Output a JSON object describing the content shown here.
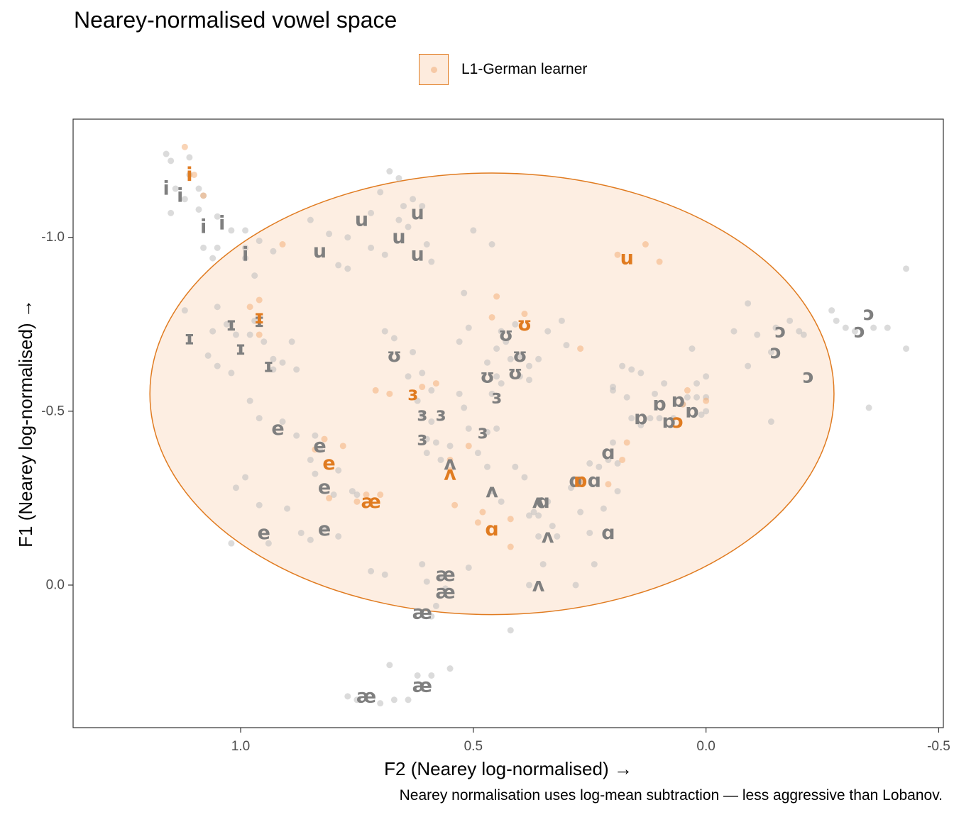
{
  "chart_data": {
    "type": "scatter",
    "title": "Nearey-normalised vowel space",
    "xlabel": "F2 (Nearey log-normalised) →",
    "ylabel": "F1 (Nearey log-normalised) →",
    "caption": "Nearey normalisation uses log-mean subtraction — less aggressive than Lobanov.",
    "xlim": [
      1.36,
      -0.51
    ],
    "ylim": [
      0.41,
      -1.34
    ],
    "x_reversed": true,
    "y_reversed": true,
    "x_ticks": [
      1.0,
      0.5,
      0.0,
      -0.5
    ],
    "x_tick_labels": [
      "1.0",
      "0.5",
      "0.0",
      "-0.5"
    ],
    "y_ticks": [
      -1.0,
      -0.5,
      0.0
    ],
    "y_tick_labels": [
      "-1.0",
      "-0.5",
      "0.0"
    ],
    "legend": [
      {
        "name": "L1-German learner",
        "color": "#e07b20"
      }
    ],
    "legend_position": "top",
    "colors": {
      "learner": "#e07b20",
      "reference": "#7f7f7f",
      "ellipse_fill": "#fdebdd",
      "ellipse_stroke": "#e07b20"
    },
    "ellipse": {
      "cx": 0.46,
      "cy": -0.55,
      "rx": 0.735,
      "ry": 0.635,
      "series": "L1-German learner"
    },
    "reference_points": [
      [
        1.16,
        -1.24
      ],
      [
        1.15,
        -1.22
      ],
      [
        1.11,
        -1.23
      ],
      [
        1.11,
        -1.18
      ],
      [
        1.09,
        -1.14
      ],
      [
        1.08,
        -1.12
      ],
      [
        1.12,
        -1.11
      ],
      [
        1.09,
        -1.08
      ],
      [
        1.15,
        -1.07
      ],
      [
        1.14,
        -1.14
      ],
      [
        1.05,
        -1.06
      ],
      [
        1.02,
        -1.02
      ],
      [
        0.99,
        -1.02
      ],
      [
        1.05,
        -0.97
      ],
      [
        1.08,
        -0.97
      ],
      [
        1.06,
        -0.94
      ],
      [
        0.99,
        -0.97
      ],
      [
        0.96,
        -0.99
      ],
      [
        0.99,
        -0.94
      ],
      [
        0.97,
        -0.89
      ],
      [
        0.93,
        -0.96
      ],
      [
        0.85,
        -1.05
      ],
      [
        0.81,
        -1.01
      ],
      [
        0.79,
        -0.92
      ],
      [
        0.77,
        -0.91
      ],
      [
        0.7,
        -1.13
      ],
      [
        0.72,
        -1.07
      ],
      [
        0.77,
        -1.0
      ],
      [
        0.72,
        -0.97
      ],
      [
        0.69,
        -0.95
      ],
      [
        0.63,
        -1.11
      ],
      [
        0.61,
        -1.09
      ],
      [
        0.66,
        -1.05
      ],
      [
        0.64,
        -1.03
      ],
      [
        0.6,
        -0.98
      ],
      [
        0.59,
        -0.93
      ],
      [
        0.5,
        -1.02
      ],
      [
        0.46,
        -0.98
      ],
      [
        0.52,
        -0.84
      ],
      [
        0.68,
        -1.19
      ],
      [
        0.66,
        -1.17
      ],
      [
        0.65,
        -1.09
      ],
      [
        1.12,
        -0.79
      ],
      [
        1.05,
        -0.8
      ],
      [
        1.06,
        -0.73
      ],
      [
        1.03,
        -0.75
      ],
      [
        1.01,
        -0.72
      ],
      [
        1.07,
        -0.66
      ],
      [
        1.05,
        -0.63
      ],
      [
        1.02,
        -0.61
      ],
      [
        0.98,
        -0.72
      ],
      [
        0.97,
        -0.76
      ],
      [
        0.95,
        -0.7
      ],
      [
        0.93,
        -0.65
      ],
      [
        0.89,
        -0.7
      ],
      [
        0.93,
        -0.62
      ],
      [
        0.91,
        -0.64
      ],
      [
        0.88,
        -0.62
      ],
      [
        0.98,
        -0.53
      ],
      [
        0.96,
        -0.48
      ],
      [
        0.91,
        -0.47
      ],
      [
        0.88,
        -0.43
      ],
      [
        0.84,
        -0.43
      ],
      [
        0.83,
        -0.39
      ],
      [
        0.85,
        -0.36
      ],
      [
        0.84,
        -0.32
      ],
      [
        0.79,
        -0.33
      ],
      [
        0.8,
        -0.26
      ],
      [
        0.75,
        -0.26
      ],
      [
        0.9,
        -0.22
      ],
      [
        0.87,
        -0.15
      ],
      [
        0.85,
        -0.13
      ],
      [
        0.82,
        -0.16
      ],
      [
        0.79,
        -0.14
      ],
      [
        0.76,
        -0.27
      ],
      [
        0.99,
        -0.31
      ],
      [
        1.01,
        -0.28
      ],
      [
        0.96,
        -0.23
      ],
      [
        0.94,
        -0.12
      ],
      [
        1.02,
        -0.12
      ],
      [
        0.69,
        -0.73
      ],
      [
        0.67,
        -0.71
      ],
      [
        0.63,
        -0.67
      ],
      [
        0.64,
        -0.6
      ],
      [
        0.61,
        -0.61
      ],
      [
        0.59,
        -0.56
      ],
      [
        0.62,
        -0.53
      ],
      [
        0.61,
        -0.49
      ],
      [
        0.59,
        -0.47
      ],
      [
        0.6,
        -0.42
      ],
      [
        0.58,
        -0.41
      ],
      [
        0.55,
        -0.4
      ],
      [
        0.6,
        -0.38
      ],
      [
        0.57,
        -0.36
      ],
      [
        0.53,
        -0.55
      ],
      [
        0.52,
        -0.51
      ],
      [
        0.51,
        -0.45
      ],
      [
        0.47,
        -0.44
      ],
      [
        0.45,
        -0.45
      ],
      [
        0.49,
        -0.38
      ],
      [
        0.46,
        -0.55
      ],
      [
        0.44,
        -0.58
      ],
      [
        0.45,
        -0.6
      ],
      [
        0.47,
        -0.64
      ],
      [
        0.45,
        -0.68
      ],
      [
        0.43,
        -0.7
      ],
      [
        0.42,
        -0.65
      ],
      [
        0.44,
        -0.73
      ],
      [
        0.41,
        -0.75
      ],
      [
        0.4,
        -0.66
      ],
      [
        0.38,
        -0.63
      ],
      [
        0.36,
        -0.65
      ],
      [
        0.38,
        -0.59
      ],
      [
        0.4,
        -0.6
      ],
      [
        0.3,
        -0.69
      ],
      [
        0.31,
        -0.76
      ],
      [
        0.34,
        -0.73
      ],
      [
        0.53,
        -0.7
      ],
      [
        0.51,
        -0.74
      ],
      [
        0.47,
        -0.34
      ],
      [
        0.46,
        -0.27
      ],
      [
        0.44,
        -0.24
      ],
      [
        0.41,
        -0.34
      ],
      [
        0.39,
        -0.31
      ],
      [
        0.38,
        -0.2
      ],
      [
        0.37,
        -0.21
      ],
      [
        0.36,
        -0.2
      ],
      [
        0.34,
        -0.24
      ],
      [
        0.33,
        -0.17
      ],
      [
        0.36,
        -0.14
      ],
      [
        0.35,
        -0.06
      ],
      [
        0.38,
        -0.0
      ],
      [
        0.32,
        -0.14
      ],
      [
        0.28,
        -0.0
      ],
      [
        0.27,
        -0.21
      ],
      [
        0.25,
        -0.15
      ],
      [
        0.24,
        -0.06
      ],
      [
        0.22,
        -0.22
      ],
      [
        0.19,
        -0.27
      ],
      [
        0.23,
        -0.34
      ],
      [
        0.21,
        -0.36
      ],
      [
        0.25,
        -0.35
      ],
      [
        0.27,
        -0.3
      ],
      [
        0.29,
        -0.28
      ],
      [
        0.2,
        -0.41
      ],
      [
        0.19,
        -0.35
      ],
      [
        0.2,
        -0.57
      ],
      [
        0.17,
        -0.54
      ],
      [
        0.16,
        -0.48
      ],
      [
        0.14,
        -0.46
      ],
      [
        0.12,
        -0.48
      ],
      [
        0.1,
        -0.48
      ],
      [
        0.07,
        -0.48
      ],
      [
        0.05,
        -0.52
      ],
      [
        0.04,
        -0.54
      ],
      [
        0.02,
        -0.54
      ],
      [
        0.01,
        -0.49
      ],
      [
        0.0,
        -0.5
      ],
      [
        -0.0,
        -0.54
      ],
      [
        0.02,
        -0.58
      ],
      [
        -0.0,
        -0.6
      ],
      [
        0.03,
        -0.68
      ],
      [
        0.09,
        -0.58
      ],
      [
        0.11,
        -0.55
      ],
      [
        0.14,
        -0.61
      ],
      [
        0.18,
        -0.63
      ],
      [
        0.2,
        -0.56
      ],
      [
        0.16,
        -0.62
      ],
      [
        0.72,
        -0.04
      ],
      [
        0.69,
        -0.03
      ],
      [
        0.61,
        -0.06
      ],
      [
        0.6,
        -0.01
      ],
      [
        0.57,
        -0.02
      ],
      [
        0.56,
        0.01
      ],
      [
        0.58,
        0.06
      ],
      [
        0.59,
        0.09
      ],
      [
        0.51,
        -0.05
      ],
      [
        0.42,
        0.13
      ],
      [
        0.75,
        0.33
      ],
      [
        0.77,
        0.32
      ],
      [
        0.7,
        0.34
      ],
      [
        0.67,
        0.33
      ],
      [
        0.64,
        0.33
      ],
      [
        0.59,
        0.26
      ],
      [
        0.62,
        0.26
      ],
      [
        0.68,
        0.23
      ],
      [
        0.55,
        0.24
      ],
      [
        -0.09,
        -0.81
      ],
      [
        -0.11,
        -0.72
      ],
      [
        -0.14,
        -0.67
      ],
      [
        -0.15,
        -0.74
      ],
      [
        -0.18,
        -0.76
      ],
      [
        -0.2,
        -0.73
      ],
      [
        -0.21,
        -0.72
      ],
      [
        -0.28,
        -0.76
      ],
      [
        -0.27,
        -0.79
      ],
      [
        -0.3,
        -0.74
      ],
      [
        -0.32,
        -0.73
      ],
      [
        -0.36,
        -0.74
      ],
      [
        -0.39,
        -0.74
      ],
      [
        -0.43,
        -0.91
      ],
      [
        -0.43,
        -0.68
      ],
      [
        -0.35,
        -0.51
      ],
      [
        -0.14,
        -0.47
      ],
      [
        -0.09,
        -0.63
      ],
      [
        -0.06,
        -0.73
      ]
    ],
    "learner_points": [
      [
        1.12,
        -1.26
      ],
      [
        1.1,
        -1.18
      ],
      [
        1.08,
        -1.12
      ],
      [
        0.91,
        -0.98
      ],
      [
        0.45,
        -0.83
      ],
      [
        0.39,
        -0.78
      ],
      [
        0.46,
        -0.77
      ],
      [
        0.27,
        -0.68
      ],
      [
        0.19,
        -0.95
      ],
      [
        0.13,
        -0.98
      ],
      [
        0.1,
        -0.93
      ],
      [
        0.96,
        -0.82
      ],
      [
        0.98,
        -0.8
      ],
      [
        0.96,
        -0.72
      ],
      [
        0.61,
        -0.57
      ],
      [
        0.68,
        -0.55
      ],
      [
        0.58,
        -0.58
      ],
      [
        0.82,
        -0.42
      ],
      [
        0.78,
        -0.4
      ],
      [
        0.84,
        -0.39
      ],
      [
        0.73,
        -0.26
      ],
      [
        0.7,
        -0.26
      ],
      [
        0.75,
        -0.24
      ],
      [
        0.55,
        -0.33
      ],
      [
        0.54,
        -0.23
      ],
      [
        0.48,
        -0.21
      ],
      [
        0.49,
        -0.18
      ],
      [
        0.42,
        -0.19
      ],
      [
        0.42,
        -0.11
      ],
      [
        0.17,
        -0.41
      ],
      [
        0.18,
        -0.36
      ],
      [
        0.27,
        -0.3
      ],
      [
        0.21,
        -0.29
      ],
      [
        0.05,
        -0.52
      ],
      [
        0.0,
        -0.53
      ],
      [
        0.04,
        -0.56
      ],
      [
        0.71,
        -0.56
      ],
      [
        0.81,
        -0.25
      ],
      [
        0.51,
        -0.4
      ],
      [
        0.55,
        -0.36
      ]
    ],
    "reference_labels": [
      {
        "x": 1.16,
        "y": -1.14,
        "label": "i"
      },
      {
        "x": 1.13,
        "y": -1.12,
        "label": "i"
      },
      {
        "x": 1.08,
        "y": -1.03,
        "label": "i"
      },
      {
        "x": 1.04,
        "y": -1.04,
        "label": "i"
      },
      {
        "x": 0.99,
        "y": -0.95,
        "label": "i"
      },
      {
        "x": 1.11,
        "y": -0.71,
        "label": "ɪ"
      },
      {
        "x": 1.02,
        "y": -0.75,
        "label": "ɪ"
      },
      {
        "x": 1.0,
        "y": -0.68,
        "label": "ɪ"
      },
      {
        "x": 0.96,
        "y": -0.76,
        "label": "ɪ"
      },
      {
        "x": 0.94,
        "y": -0.63,
        "label": "ɪ"
      },
      {
        "x": 0.92,
        "y": -0.45,
        "label": "e"
      },
      {
        "x": 0.83,
        "y": -0.4,
        "label": "e"
      },
      {
        "x": 0.82,
        "y": -0.28,
        "label": "e"
      },
      {
        "x": 0.82,
        "y": -0.16,
        "label": "e"
      },
      {
        "x": 0.95,
        "y": -0.15,
        "label": "e"
      },
      {
        "x": 0.74,
        "y": -1.05,
        "label": "u"
      },
      {
        "x": 0.66,
        "y": -1.0,
        "label": "u"
      },
      {
        "x": 0.62,
        "y": -0.95,
        "label": "u"
      },
      {
        "x": 0.83,
        "y": -0.96,
        "label": "u"
      },
      {
        "x": 0.62,
        "y": -1.07,
        "label": "u"
      },
      {
        "x": 0.67,
        "y": -0.66,
        "label": "ʊ"
      },
      {
        "x": 0.43,
        "y": -0.72,
        "label": "ʊ"
      },
      {
        "x": 0.4,
        "y": -0.66,
        "label": "ʊ"
      },
      {
        "x": 0.41,
        "y": -0.61,
        "label": "ʊ"
      },
      {
        "x": 0.47,
        "y": -0.6,
        "label": "ʊ"
      },
      {
        "x": 0.61,
        "y": -0.49,
        "label": "ɜ"
      },
      {
        "x": 0.57,
        "y": -0.49,
        "label": "ɜ"
      },
      {
        "x": 0.61,
        "y": -0.42,
        "label": "ɜ"
      },
      {
        "x": 0.48,
        "y": -0.44,
        "label": "ɜ"
      },
      {
        "x": 0.45,
        "y": -0.54,
        "label": "ɜ"
      },
      {
        "x": 0.55,
        "y": -0.35,
        "label": "ʌ"
      },
      {
        "x": 0.46,
        "y": -0.27,
        "label": "ʌ"
      },
      {
        "x": 0.36,
        "y": -0.24,
        "label": "ʌ"
      },
      {
        "x": 0.34,
        "y": -0.14,
        "label": "ʌ"
      },
      {
        "x": 0.36,
        "y": 0.0,
        "label": "ʌ"
      },
      {
        "x": 0.56,
        "y": 0.02,
        "label": "æ"
      },
      {
        "x": 0.56,
        "y": -0.03,
        "label": "æ"
      },
      {
        "x": 0.61,
        "y": 0.08,
        "label": "æ"
      },
      {
        "x": 0.61,
        "y": 0.29,
        "label": "æ"
      },
      {
        "x": 0.73,
        "y": 0.32,
        "label": "æ"
      },
      {
        "x": 0.21,
        "y": -0.38,
        "label": "ɑ"
      },
      {
        "x": 0.24,
        "y": -0.3,
        "label": "ɑ"
      },
      {
        "x": 0.35,
        "y": -0.24,
        "label": "ɑ"
      },
      {
        "x": 0.21,
        "y": -0.15,
        "label": "ɑ"
      },
      {
        "x": 0.28,
        "y": -0.3,
        "label": "ɑ"
      },
      {
        "x": 0.14,
        "y": -0.48,
        "label": "ɒ"
      },
      {
        "x": 0.1,
        "y": -0.52,
        "label": "ɒ"
      },
      {
        "x": 0.08,
        "y": -0.47,
        "label": "ɒ"
      },
      {
        "x": 0.06,
        "y": -0.53,
        "label": "ɒ"
      },
      {
        "x": 0.03,
        "y": -0.5,
        "label": "ɒ"
      },
      {
        "x": -0.16,
        "y": -0.73,
        "label": "ɔ"
      },
      {
        "x": -0.15,
        "y": -0.67,
        "label": "ɔ"
      },
      {
        "x": -0.22,
        "y": -0.6,
        "label": "ɔ"
      },
      {
        "x": -0.33,
        "y": -0.73,
        "label": "ɔ"
      },
      {
        "x": -0.35,
        "y": -0.78,
        "label": "ɔ"
      }
    ],
    "learner_labels": [
      {
        "x": 1.11,
        "y": -1.18,
        "label": "i"
      },
      {
        "x": 0.17,
        "y": -0.94,
        "label": "u"
      },
      {
        "x": 0.39,
        "y": -0.75,
        "label": "ʊ"
      },
      {
        "x": 0.96,
        "y": -0.77,
        "label": "ɪ"
      },
      {
        "x": 0.63,
        "y": -0.55,
        "label": "ɜ"
      },
      {
        "x": 0.81,
        "y": -0.35,
        "label": "e"
      },
      {
        "x": 0.55,
        "y": -0.32,
        "label": "ʌ"
      },
      {
        "x": 0.72,
        "y": -0.24,
        "label": "æ"
      },
      {
        "x": 0.46,
        "y": -0.16,
        "label": "ɑ"
      },
      {
        "x": 0.27,
        "y": -0.3,
        "label": "ɒ"
      },
      {
        "x": 0.06,
        "y": -0.47,
        "label": "ɔ"
      }
    ]
  }
}
